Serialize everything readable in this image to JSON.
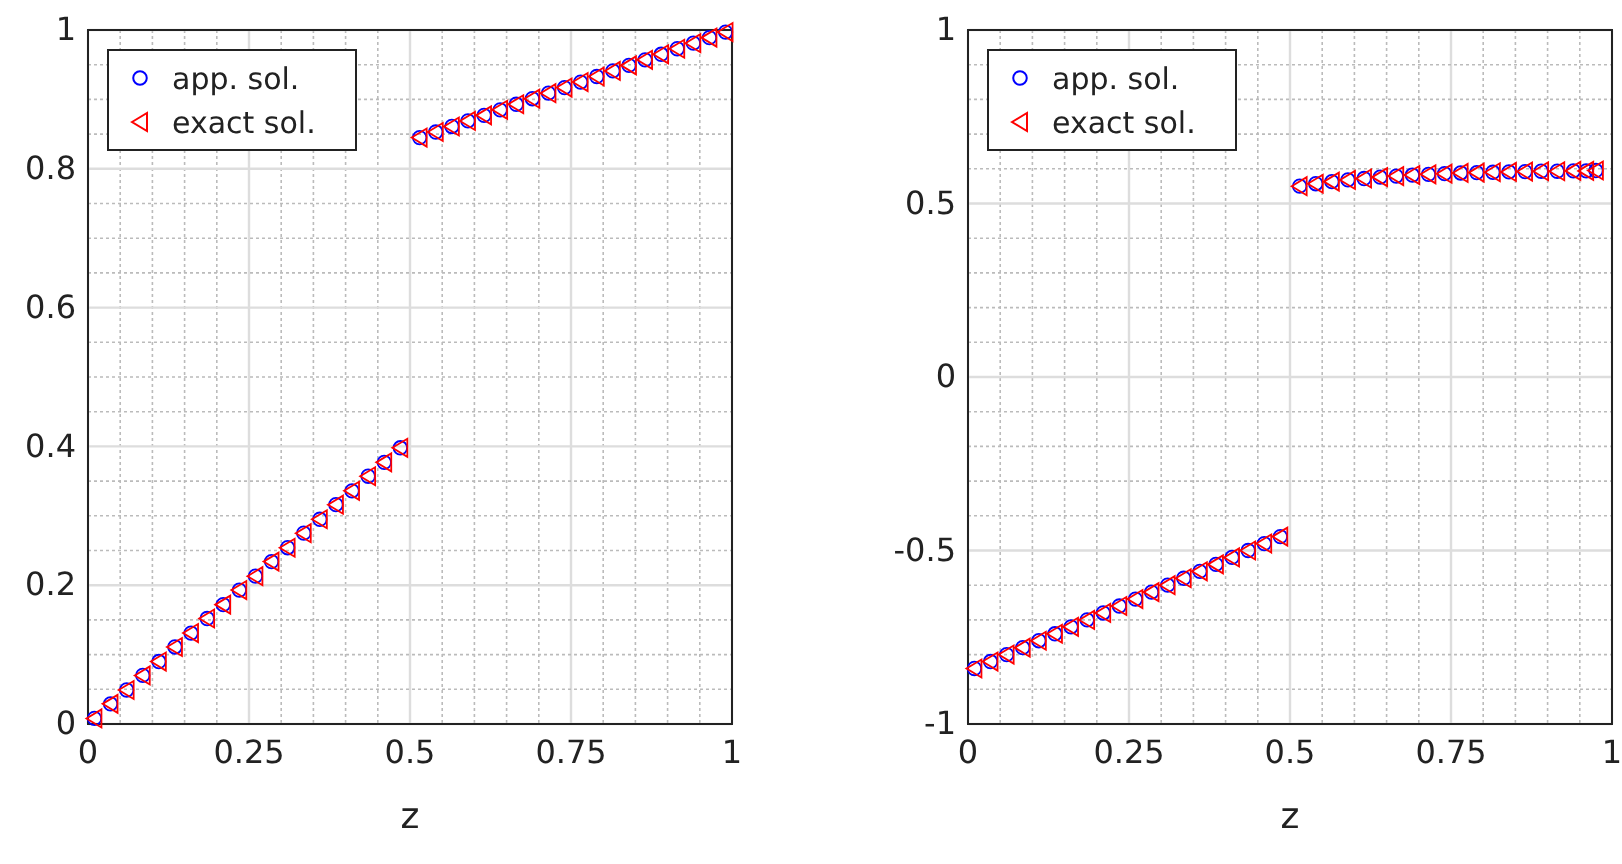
{
  "chart_data": [
    {
      "type": "scatter",
      "xlabel": "z",
      "grid": true,
      "legend": "top left",
      "x": [
        0.01,
        0.035,
        0.06,
        0.085,
        0.11,
        0.135,
        0.16,
        0.185,
        0.21,
        0.235,
        0.26,
        0.285,
        0.31,
        0.335,
        0.36,
        0.385,
        0.41,
        0.435,
        0.46,
        0.485,
        0.515,
        0.54,
        0.565,
        0.59,
        0.615,
        0.64,
        0.665,
        0.69,
        0.715,
        0.74,
        0.765,
        0.79,
        0.815,
        0.84,
        0.865,
        0.89,
        0.915,
        0.94,
        0.965,
        0.99
      ],
      "xlim": [
        0,
        1
      ],
      "xticks": [
        0,
        {
          "value": 0.05,
          "label": null
        },
        {
          "value": 0.1,
          "label": null
        },
        {
          "value": 0.15,
          "label": null
        },
        {
          "value": 0.2,
          "label": null
        },
        0.25,
        {
          "value": 0.3,
          "label": null
        },
        {
          "value": 0.35,
          "label": null
        },
        {
          "value": 0.4,
          "label": null
        },
        {
          "value": 0.45,
          "label": null
        },
        0.5,
        {
          "value": 0.55,
          "label": null
        },
        {
          "value": 0.6,
          "label": null
        },
        {
          "value": 0.65,
          "label": null
        },
        {
          "value": 0.7,
          "label": null
        },
        0.75,
        {
          "value": 0.8,
          "label": null
        },
        {
          "value": 0.85,
          "label": null
        },
        {
          "value": 0.9,
          "label": null
        },
        {
          "value": 0.95,
          "label": null
        },
        1
      ],
      "ylim": [
        0,
        1
      ],
      "yticks": [
        0,
        {
          "value": 0.05,
          "label": null
        },
        {
          "value": 0.1,
          "label": null
        },
        {
          "value": 0.15,
          "label": null
        },
        0.2,
        {
          "value": 0.25,
          "label": null
        },
        {
          "value": 0.3,
          "label": null
        },
        {
          "value": 0.35,
          "label": null
        },
        0.4,
        {
          "value": 0.45,
          "label": null
        },
        {
          "value": 0.5,
          "label": null
        },
        {
          "value": 0.55,
          "label": null
        },
        0.6,
        {
          "value": 0.65,
          "label": null
        },
        {
          "value": 0.7,
          "label": null
        },
        {
          "value": 0.75,
          "label": null
        },
        0.8,
        {
          "value": 0.85,
          "label": null
        },
        {
          "value": 0.9,
          "label": null
        },
        {
          "value": 0.95,
          "label": null
        },
        1
      ],
      "series": [
        {
          "name": "app. sol.",
          "color": "#0000ff",
          "marker": "circle",
          "values": [
            0.008,
            0.029,
            0.049,
            0.07,
            0.09,
            0.111,
            0.131,
            0.152,
            0.172,
            0.193,
            0.213,
            0.234,
            0.254,
            0.275,
            0.295,
            0.316,
            0.336,
            0.357,
            0.377,
            0.398,
            0.845,
            0.853,
            0.861,
            0.869,
            0.877,
            0.885,
            0.893,
            0.901,
            0.909,
            0.917,
            0.925,
            0.933,
            0.941,
            0.949,
            0.957,
            0.965,
            0.973,
            0.981,
            0.989,
            0.997
          ]
        },
        {
          "name": "exact sol.",
          "color": "#ff0000",
          "marker": "triangle",
          "values": [
            0.008,
            0.029,
            0.049,
            0.07,
            0.09,
            0.111,
            0.131,
            0.152,
            0.172,
            0.193,
            0.213,
            0.234,
            0.254,
            0.275,
            0.295,
            0.316,
            0.336,
            0.357,
            0.377,
            0.398,
            0.845,
            0.853,
            0.861,
            0.869,
            0.877,
            0.885,
            0.893,
            0.901,
            0.909,
            0.917,
            0.925,
            0.933,
            0.941,
            0.949,
            0.957,
            0.965,
            0.973,
            0.981,
            0.989,
            0.997
          ]
        }
      ]
    },
    {
      "type": "scatter",
      "xlabel": "z",
      "grid": true,
      "legend": "top left",
      "x": [
        0.01,
        0.035,
        0.06,
        0.085,
        0.11,
        0.135,
        0.16,
        0.185,
        0.21,
        0.235,
        0.26,
        0.285,
        0.31,
        0.335,
        0.36,
        0.385,
        0.41,
        0.435,
        0.46,
        0.485,
        0.515,
        0.54,
        0.565,
        0.59,
        0.615,
        0.64,
        0.665,
        0.69,
        0.715,
        0.74,
        0.765,
        0.79,
        0.815,
        0.84,
        0.865,
        0.89,
        0.915,
        0.94,
        0.96,
        0.975
      ],
      "xlim": [
        0,
        1
      ],
      "xticks": [
        0,
        {
          "value": 0.05,
          "label": null
        },
        {
          "value": 0.1,
          "label": null
        },
        {
          "value": 0.15,
          "label": null
        },
        {
          "value": 0.2,
          "label": null
        },
        0.25,
        {
          "value": 0.3,
          "label": null
        },
        {
          "value": 0.35,
          "label": null
        },
        {
          "value": 0.4,
          "label": null
        },
        {
          "value": 0.45,
          "label": null
        },
        0.5,
        {
          "value": 0.55,
          "label": null
        },
        {
          "value": 0.6,
          "label": null
        },
        {
          "value": 0.65,
          "label": null
        },
        {
          "value": 0.7,
          "label": null
        },
        0.75,
        {
          "value": 0.8,
          "label": null
        },
        {
          "value": 0.85,
          "label": null
        },
        {
          "value": 0.9,
          "label": null
        },
        {
          "value": 0.95,
          "label": null
        },
        1
      ],
      "ylim": [
        -1,
        1
      ],
      "yticks": [
        -1,
        {
          "value": -0.9,
          "label": null
        },
        {
          "value": -0.8,
          "label": null
        },
        {
          "value": -0.7,
          "label": null
        },
        {
          "value": -0.6,
          "label": null
        },
        -0.5,
        {
          "value": -0.4,
          "label": null
        },
        {
          "value": -0.3,
          "label": null
        },
        {
          "value": -0.2,
          "label": null
        },
        {
          "value": -0.1,
          "label": null
        },
        0,
        {
          "value": 0.1,
          "label": null
        },
        {
          "value": 0.2,
          "label": null
        },
        {
          "value": 0.3,
          "label": null
        },
        {
          "value": 0.4,
          "label": null
        },
        0.5,
        {
          "value": 0.6,
          "label": null
        },
        {
          "value": 0.7,
          "label": null
        },
        {
          "value": 0.8,
          "label": null
        },
        {
          "value": 0.9,
          "label": null
        },
        1
      ],
      "series": [
        {
          "name": "app. sol.",
          "color": "#0000ff",
          "marker": "circle",
          "values": [
            -0.84,
            -0.82,
            -0.8,
            -0.78,
            -0.76,
            -0.74,
            -0.72,
            -0.7,
            -0.68,
            -0.66,
            -0.64,
            -0.62,
            -0.6,
            -0.58,
            -0.56,
            -0.54,
            -0.52,
            -0.5,
            -0.48,
            -0.46,
            0.55,
            0.557,
            0.563,
            0.568,
            0.572,
            0.576,
            0.579,
            0.582,
            0.584,
            0.586,
            0.588,
            0.589,
            0.59,
            0.591,
            0.592,
            0.593,
            0.593,
            0.594,
            0.594,
            0.595
          ]
        },
        {
          "name": "exact sol.",
          "color": "#ff0000",
          "marker": "triangle",
          "values": [
            -0.84,
            -0.82,
            -0.8,
            -0.78,
            -0.76,
            -0.74,
            -0.72,
            -0.7,
            -0.68,
            -0.66,
            -0.64,
            -0.62,
            -0.6,
            -0.58,
            -0.56,
            -0.54,
            -0.52,
            -0.5,
            -0.48,
            -0.46,
            0.55,
            0.557,
            0.563,
            0.568,
            0.572,
            0.576,
            0.579,
            0.582,
            0.584,
            0.586,
            0.588,
            0.589,
            0.59,
            0.591,
            0.592,
            0.593,
            0.593,
            0.594,
            0.594,
            0.595
          ]
        }
      ]
    }
  ]
}
